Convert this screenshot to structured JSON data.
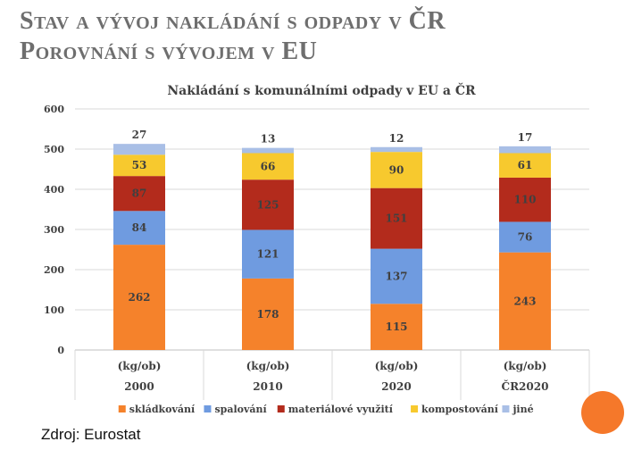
{
  "slide": {
    "title_line1": "Stav a vývoj nakládání s odpady v ČR",
    "title_line2": "Porovnání s vývojem v EU",
    "source": "Zdroj: Eurostat"
  },
  "chart_data": {
    "type": "bar",
    "stacked": true,
    "title": "Nakládání s komunálními odpady v EU a ČR",
    "categories": [
      "2000",
      "2010",
      "2020",
      "ČR2020"
    ],
    "unit_label": "(kg/ob)",
    "ylim": [
      0,
      600
    ],
    "yticks": [
      0,
      100,
      200,
      300,
      400,
      500,
      600
    ],
    "grid": true,
    "legend_position": "bottom",
    "series": [
      {
        "name": "skládkování",
        "color": "#f5822b",
        "values": [
          262,
          178,
          115,
          243
        ]
      },
      {
        "name": "spalování",
        "color": "#6f9be0",
        "values": [
          84,
          121,
          137,
          76
        ]
      },
      {
        "name": "materiálové využití",
        "color": "#b32b1c",
        "values": [
          87,
          125,
          151,
          110
        ]
      },
      {
        "name": "kompostování",
        "color": "#f7c92e",
        "values": [
          53,
          66,
          90,
          61
        ]
      },
      {
        "name": "jiné",
        "color": "#a9bfe6",
        "values": [
          27,
          13,
          12,
          17
        ]
      }
    ]
  }
}
